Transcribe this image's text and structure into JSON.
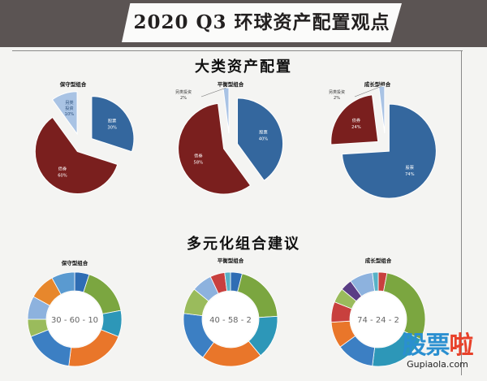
{
  "header": {
    "title": "2020 Q3 环球资产配置观点"
  },
  "section1": {
    "title": "大类资产配置"
  },
  "section2": {
    "title": "多元化组合建议"
  },
  "colors": {
    "stock": "#34679e",
    "bond": "#7a1f1e",
    "other": "#a9c3e4",
    "donut": [
      "#2f6db4",
      "#e9762a",
      "#2d97b8",
      "#7ba640",
      "#8db2de",
      "#e7872c",
      "#57b2c7",
      "#9abb5c",
      "#c8403e",
      "#5a3d85"
    ]
  },
  "chart_data": [
    {
      "type": "pie",
      "title": "保守型组合",
      "slices": [
        {
          "label": "股票",
          "value": 30,
          "pct_label": "30%"
        },
        {
          "label": "债券",
          "value": 60,
          "pct_label": "60%"
        },
        {
          "label": "另类投资",
          "value": 10,
          "pct_label": "10%"
        }
      ]
    },
    {
      "type": "pie",
      "title": "平衡型组合",
      "slices": [
        {
          "label": "股票",
          "value": 40,
          "pct_label": "40%"
        },
        {
          "label": "债券",
          "value": 58,
          "pct_label": "58%"
        },
        {
          "label": "另类投资",
          "value": 2,
          "pct_label": "2%"
        }
      ]
    },
    {
      "type": "pie",
      "title": "成长型组合",
      "slices": [
        {
          "label": "股票",
          "value": 74,
          "pct_label": "74%"
        },
        {
          "label": "债券",
          "value": 24,
          "pct_label": "24%"
        },
        {
          "label": "另类投资",
          "value": 2,
          "pct_label": "2%"
        }
      ]
    },
    {
      "type": "donut",
      "title": "保守型组合",
      "center_label": "30 - 60 - 10",
      "segments": [
        5,
        17,
        9,
        21,
        17,
        6,
        8,
        9,
        8
      ]
    },
    {
      "type": "donut",
      "title": "平衡型组合",
      "center_label": "40 - 58 - 2",
      "segments": [
        4,
        20,
        15,
        21,
        17,
        9,
        7,
        5,
        2
      ]
    },
    {
      "type": "donut",
      "title": "成长型组合",
      "center_label": "74 - 24 - 2",
      "segments": [
        3,
        29,
        20,
        13,
        9,
        7,
        5,
        4,
        8,
        2
      ]
    }
  ],
  "watermark": {
    "brand_a": "股票",
    "brand_b": "啦",
    "url": "Gupiaola.com"
  }
}
